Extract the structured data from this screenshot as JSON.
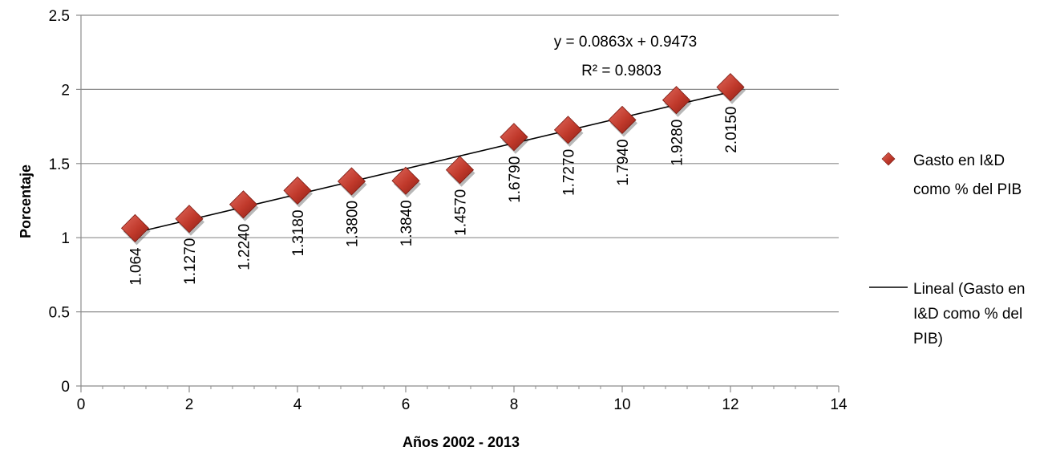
{
  "chart_data": {
    "type": "scatter",
    "xlabel": "Años 2002 - 2013",
    "ylabel": "Porcentaje",
    "xlim": [
      0,
      14
    ],
    "ylim": [
      0,
      2.5
    ],
    "x_ticks": [
      "0",
      "2",
      "4",
      "6",
      "8",
      "10",
      "12",
      "14"
    ],
    "y_ticks": [
      "0",
      "0.5",
      "1",
      "1.5",
      "2",
      "2.5"
    ],
    "grid": "horizontal",
    "legend_position": "right",
    "series": [
      {
        "name": "Gasto en I&D como % del PIB",
        "marker": "diamond",
        "color": "#c0392b",
        "x": [
          1,
          2,
          3,
          4,
          5,
          6,
          7,
          8,
          9,
          10,
          11,
          12
        ],
        "y": [
          1.064,
          1.127,
          1.224,
          1.318,
          1.38,
          1.384,
          1.457,
          1.679,
          1.727,
          1.794,
          1.928,
          2.015
        ],
        "labels": [
          "1.064",
          "1.1270",
          "1.2240",
          "1.3180",
          "1.3800",
          "1.3840",
          "1.4570",
          "1.6790",
          "1.7270",
          "1.7940",
          "1.9280",
          "2.0150"
        ]
      }
    ],
    "trendline": {
      "name": "Lineal (Gasto en I&D como % del PIB)",
      "slope": 0.0863,
      "intercept": 0.9473,
      "x_range": [
        1,
        12
      ],
      "color": "#000000",
      "equation": "y = 0.0863x + 0.9473",
      "r_squared": "R² = 0.9803"
    },
    "legend": {
      "scatter_lines": [
        "Gasto en I&D",
        "como % del PIB"
      ],
      "trend_lines": [
        "Lineal (Gasto en",
        "I&D como % del",
        "PIB)"
      ]
    }
  }
}
